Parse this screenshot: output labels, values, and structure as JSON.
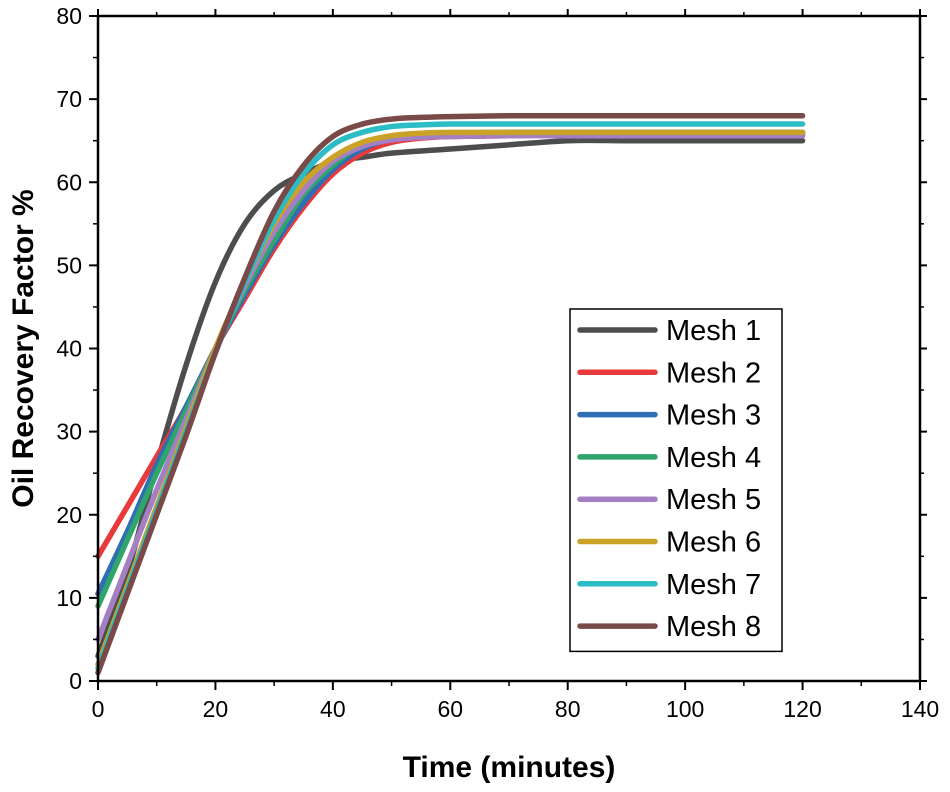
{
  "chart_data": {
    "type": "line",
    "title": "",
    "xlabel": "Time (minutes)",
    "ylabel": "Oil Recovery Factor %",
    "xlim": [
      0,
      140
    ],
    "ylim": [
      0,
      80
    ],
    "xticks": [
      0,
      20,
      40,
      60,
      80,
      100,
      120,
      140
    ],
    "yticks": [
      0,
      10,
      20,
      30,
      40,
      50,
      60,
      70,
      80
    ],
    "x_tick_labels": [
      "0",
      "20",
      "40",
      "60",
      "80",
      "100",
      "120",
      "140"
    ],
    "y_tick_labels": [
      "0",
      "10",
      "20",
      "30",
      "40",
      "50",
      "60",
      "70",
      "80"
    ],
    "grid": false,
    "legend_position": "bottom-right",
    "series": [
      {
        "name": "Mesh 1",
        "color": "#4d4d4d",
        "x": [
          0,
          5,
          10,
          15,
          20,
          25,
          30,
          35,
          40,
          45,
          50,
          60,
          70,
          80,
          90,
          100,
          110,
          120
        ],
        "y": [
          3,
          13,
          26,
          38,
          48,
          55,
          59,
          61,
          62.5,
          63,
          63.5,
          64,
          64.5,
          65,
          65,
          65,
          65,
          65
        ]
      },
      {
        "name": "Mesh 2",
        "color": "#e8393b",
        "x": [
          0,
          5,
          10,
          15,
          20,
          25,
          30,
          35,
          40,
          45,
          50,
          55,
          60,
          70,
          80,
          90,
          100,
          110,
          120
        ],
        "y": [
          15,
          21,
          27,
          33,
          40,
          46,
          52,
          57,
          61,
          63.5,
          64.8,
          65.3,
          65.5,
          65.6,
          65.7,
          65.7,
          65.7,
          65.7,
          65.7
        ]
      },
      {
        "name": "Mesh 3",
        "color": "#2f6db5",
        "x": [
          0,
          5,
          10,
          15,
          20,
          25,
          30,
          35,
          40,
          45,
          50,
          55,
          60,
          70,
          80,
          90,
          100,
          110,
          120
        ],
        "y": [
          10.5,
          18,
          26,
          33,
          40,
          46.5,
          52.5,
          57.5,
          61.5,
          64,
          65.2,
          65.7,
          65.9,
          66,
          66,
          66,
          66,
          66,
          66
        ]
      },
      {
        "name": "Mesh 4",
        "color": "#2fa56b",
        "x": [
          0,
          5,
          10,
          15,
          20,
          25,
          30,
          35,
          40,
          45,
          50,
          55,
          60,
          70,
          80,
          90,
          100,
          110,
          120
        ],
        "y": [
          9,
          17,
          25,
          32.5,
          40,
          47,
          53,
          58.5,
          62,
          64.5,
          65.5,
          65.8,
          65.9,
          66,
          66,
          66,
          66,
          66,
          66
        ]
      },
      {
        "name": "Mesh 5",
        "color": "#a57fc4",
        "x": [
          0,
          5,
          10,
          15,
          20,
          25,
          30,
          35,
          40,
          45,
          50,
          55,
          60,
          70,
          80,
          90,
          100,
          110,
          120
        ],
        "y": [
          5,
          14,
          23,
          31.5,
          40,
          47.5,
          54,
          59,
          62.5,
          64.3,
          65.1,
          65.4,
          65.5,
          65.6,
          65.6,
          65.6,
          65.6,
          65.6,
          65.6
        ]
      },
      {
        "name": "Mesh 6",
        "color": "#c9a227",
        "x": [
          0,
          5,
          10,
          15,
          20,
          25,
          30,
          35,
          40,
          45,
          50,
          55,
          60,
          70,
          80,
          90,
          100,
          110,
          120
        ],
        "y": [
          2,
          11.5,
          21,
          30.5,
          40,
          48,
          55,
          60,
          63,
          64.8,
          65.6,
          65.9,
          66,
          66,
          66,
          66,
          66,
          66,
          66
        ]
      },
      {
        "name": "Mesh 7",
        "color": "#2bbcc6",
        "x": [
          0,
          5,
          10,
          15,
          20,
          25,
          30,
          35,
          40,
          45,
          50,
          55,
          60,
          70,
          80,
          90,
          100,
          110,
          120
        ],
        "y": [
          1.5,
          11,
          20.5,
          30,
          39.5,
          48,
          55.5,
          61,
          64.5,
          66,
          66.7,
          66.9,
          67,
          67,
          67,
          67,
          67,
          67,
          67
        ]
      },
      {
        "name": "Mesh 8",
        "color": "#7a4a48",
        "x": [
          0,
          5,
          10,
          15,
          20,
          25,
          30,
          35,
          40,
          45,
          50,
          55,
          60,
          70,
          80,
          90,
          100,
          110,
          120
        ],
        "y": [
          1,
          10.5,
          20,
          29.5,
          39.5,
          48.5,
          56.5,
          62,
          65.5,
          67,
          67.6,
          67.8,
          67.9,
          68,
          68,
          68,
          68,
          68,
          68
        ]
      }
    ]
  }
}
